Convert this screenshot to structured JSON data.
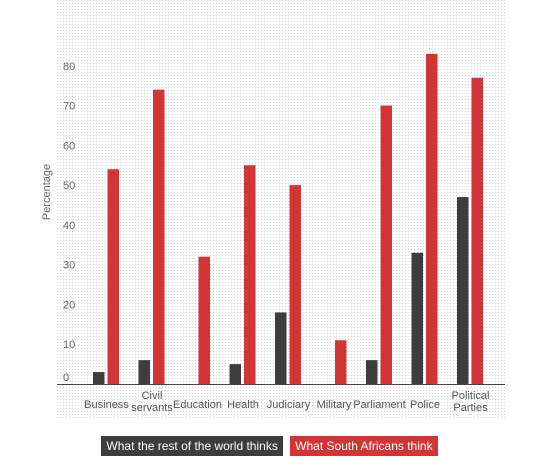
{
  "colors": {
    "rest": "#3d3d3d",
    "sa": "#d23536",
    "grid_dot": "#d9d9d9",
    "axis": "#444444"
  },
  "chart_data": {
    "type": "bar",
    "ylabel": "Percentage",
    "xlabel": "",
    "ylim": [
      0,
      89
    ],
    "yticks": [
      0,
      10,
      20,
      30,
      40,
      50,
      60,
      70,
      80
    ],
    "categories": [
      "Business",
      "Civil servants",
      "Education",
      "Health",
      "Judiciary",
      "Military",
      "Parliament",
      "Police",
      "Political Parties"
    ],
    "category_lines": [
      [
        "Business"
      ],
      [
        "Civil",
        "servants"
      ],
      [
        "Education"
      ],
      [
        "Health"
      ],
      [
        "Judiciary"
      ],
      [
        "Military"
      ],
      [
        "Parliament"
      ],
      [
        "Police"
      ],
      [
        "Political",
        "Parties"
      ]
    ],
    "series": [
      {
        "name": "What the rest of the world thinks",
        "color": "#3d3d3d",
        "values": [
          3,
          6,
          null,
          5,
          18,
          null,
          6,
          33,
          47
        ]
      },
      {
        "name": "What South Africans think",
        "color": "#d23536",
        "values": [
          54,
          74,
          32,
          55,
          50,
          11,
          70,
          83,
          77
        ]
      }
    ],
    "grid": "dotted background",
    "legend": "bottom-center"
  }
}
